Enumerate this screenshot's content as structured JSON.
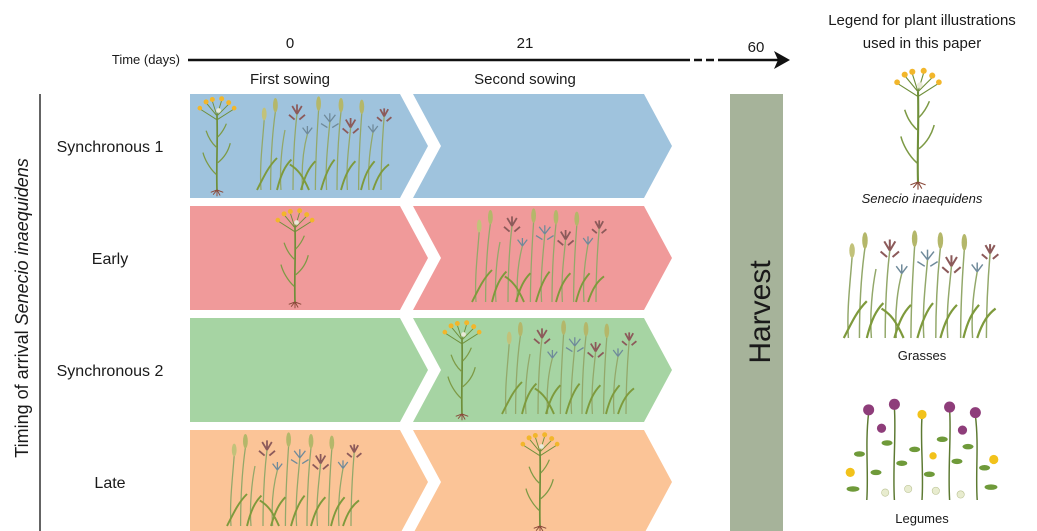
{
  "timeline": {
    "label": "Time (days)",
    "ticks": [
      "0",
      "21",
      "60"
    ],
    "phase_labels": [
      "First sowing",
      "Second sowing"
    ]
  },
  "y_axis_label_prefix": "Timing of arrival ",
  "y_axis_label_species": "Senecio inaequidens",
  "rows": [
    {
      "label": "Synchronous 1",
      "color": "#9fc3dd",
      "first_sowing": [
        "senecio",
        "grasses"
      ],
      "second_sowing": []
    },
    {
      "label": "Early",
      "color": "#f09a9a",
      "first_sowing": [
        "senecio"
      ],
      "second_sowing": [
        "grasses"
      ]
    },
    {
      "label": "Synchronous 2",
      "color": "#a6d4a3",
      "first_sowing": [],
      "second_sowing": [
        "senecio",
        "grasses"
      ]
    },
    {
      "label": "Late",
      "color": "#fbc497",
      "first_sowing": [
        "grasses"
      ],
      "second_sowing": [
        "senecio"
      ]
    }
  ],
  "harvest": {
    "label": "Harvest",
    "color": "#a6b39a"
  },
  "legend": {
    "title_line1": "Legend for plant illustrations",
    "title_line2": "used in this paper",
    "items": [
      {
        "key": "senecio",
        "label": "Senecio inaequidens",
        "italic": true
      },
      {
        "key": "grasses",
        "label": "Grasses",
        "italic": false
      },
      {
        "key": "legumes",
        "label": "Legumes",
        "italic": false
      }
    ]
  },
  "plant_colors": {
    "stem": "#6f8f3a",
    "flower_yellow": "#f2b62b",
    "grass_green": "#9bb05a",
    "grass_brown": "#8c5a5a",
    "grass_blue": "#6f8a9a",
    "legume_purple": "#8e3d7a",
    "legume_white": "#e8eccf"
  }
}
